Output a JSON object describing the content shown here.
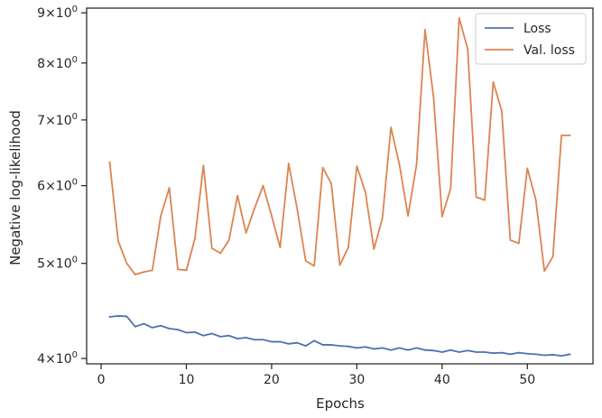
{
  "chart_data": {
    "type": "line",
    "xlabel": "Epochs",
    "ylabel": "Negative log-likelihood",
    "xlim": [
      -1.7,
      57.7
    ],
    "ylim": [
      3.95,
      9.1
    ],
    "yscale": "log",
    "grid": false,
    "legend_position": "top-right",
    "x_ticks": [
      0,
      10,
      20,
      30,
      40,
      50
    ],
    "x_tick_labels": [
      "0",
      "10",
      "20",
      "30",
      "40",
      "50"
    ],
    "y_ticks": [
      {
        "value": 4,
        "mantissa": "4",
        "exp": "0"
      },
      {
        "value": 5,
        "mantissa": "5",
        "exp": "0"
      },
      {
        "value": 6,
        "mantissa": "6",
        "exp": "0"
      },
      {
        "value": 7,
        "mantissa": "7",
        "exp": "0"
      },
      {
        "value": 8,
        "mantissa": "8",
        "exp": "0"
      },
      {
        "value": 9,
        "mantissa": "9",
        "exp": "0"
      }
    ],
    "y_tick_prefix": "×10",
    "x": [
      1,
      2,
      3,
      4,
      5,
      6,
      7,
      8,
      9,
      10,
      11,
      12,
      13,
      14,
      15,
      16,
      17,
      18,
      19,
      20,
      21,
      22,
      23,
      24,
      25,
      26,
      27,
      28,
      29,
      30,
      31,
      32,
      33,
      34,
      35,
      36,
      37,
      38,
      39,
      40,
      41,
      42,
      43,
      44,
      45,
      46,
      47,
      48,
      49,
      50,
      51,
      52,
      53,
      54,
      55
    ],
    "series": [
      {
        "name": "Loss",
        "color": "#4c72b0",
        "values": [
          4.41,
          4.42,
          4.415,
          4.31,
          4.34,
          4.3,
          4.32,
          4.29,
          4.28,
          4.25,
          4.255,
          4.22,
          4.24,
          4.21,
          4.22,
          4.19,
          4.2,
          4.18,
          4.18,
          4.16,
          4.16,
          4.14,
          4.15,
          4.12,
          4.17,
          4.13,
          4.13,
          4.12,
          4.115,
          4.1,
          4.11,
          4.09,
          4.1,
          4.08,
          4.1,
          4.08,
          4.1,
          4.08,
          4.075,
          4.06,
          4.08,
          4.06,
          4.075,
          4.06,
          4.06,
          4.05,
          4.055,
          4.04,
          4.055,
          4.045,
          4.04,
          4.03,
          4.035,
          4.025,
          4.04
        ]
      },
      {
        "name": "Val. loss",
        "color": "#dd8452",
        "values": [
          6.34,
          5.27,
          5.0,
          4.87,
          4.9,
          4.92,
          5.59,
          5.97,
          4.93,
          4.92,
          5.3,
          6.29,
          5.18,
          5.12,
          5.28,
          5.86,
          5.37,
          5.69,
          6.0,
          5.59,
          5.19,
          6.32,
          5.68,
          5.03,
          4.97,
          6.26,
          6.03,
          4.98,
          5.19,
          6.28,
          5.91,
          5.17,
          5.56,
          6.88,
          6.3,
          5.59,
          6.3,
          8.65,
          7.38,
          5.58,
          5.96,
          8.89,
          8.27,
          5.84,
          5.8,
          7.65,
          7.15,
          5.28,
          5.24,
          6.25,
          5.8,
          4.91,
          5.08,
          6.75,
          6.75
        ]
      }
    ]
  }
}
